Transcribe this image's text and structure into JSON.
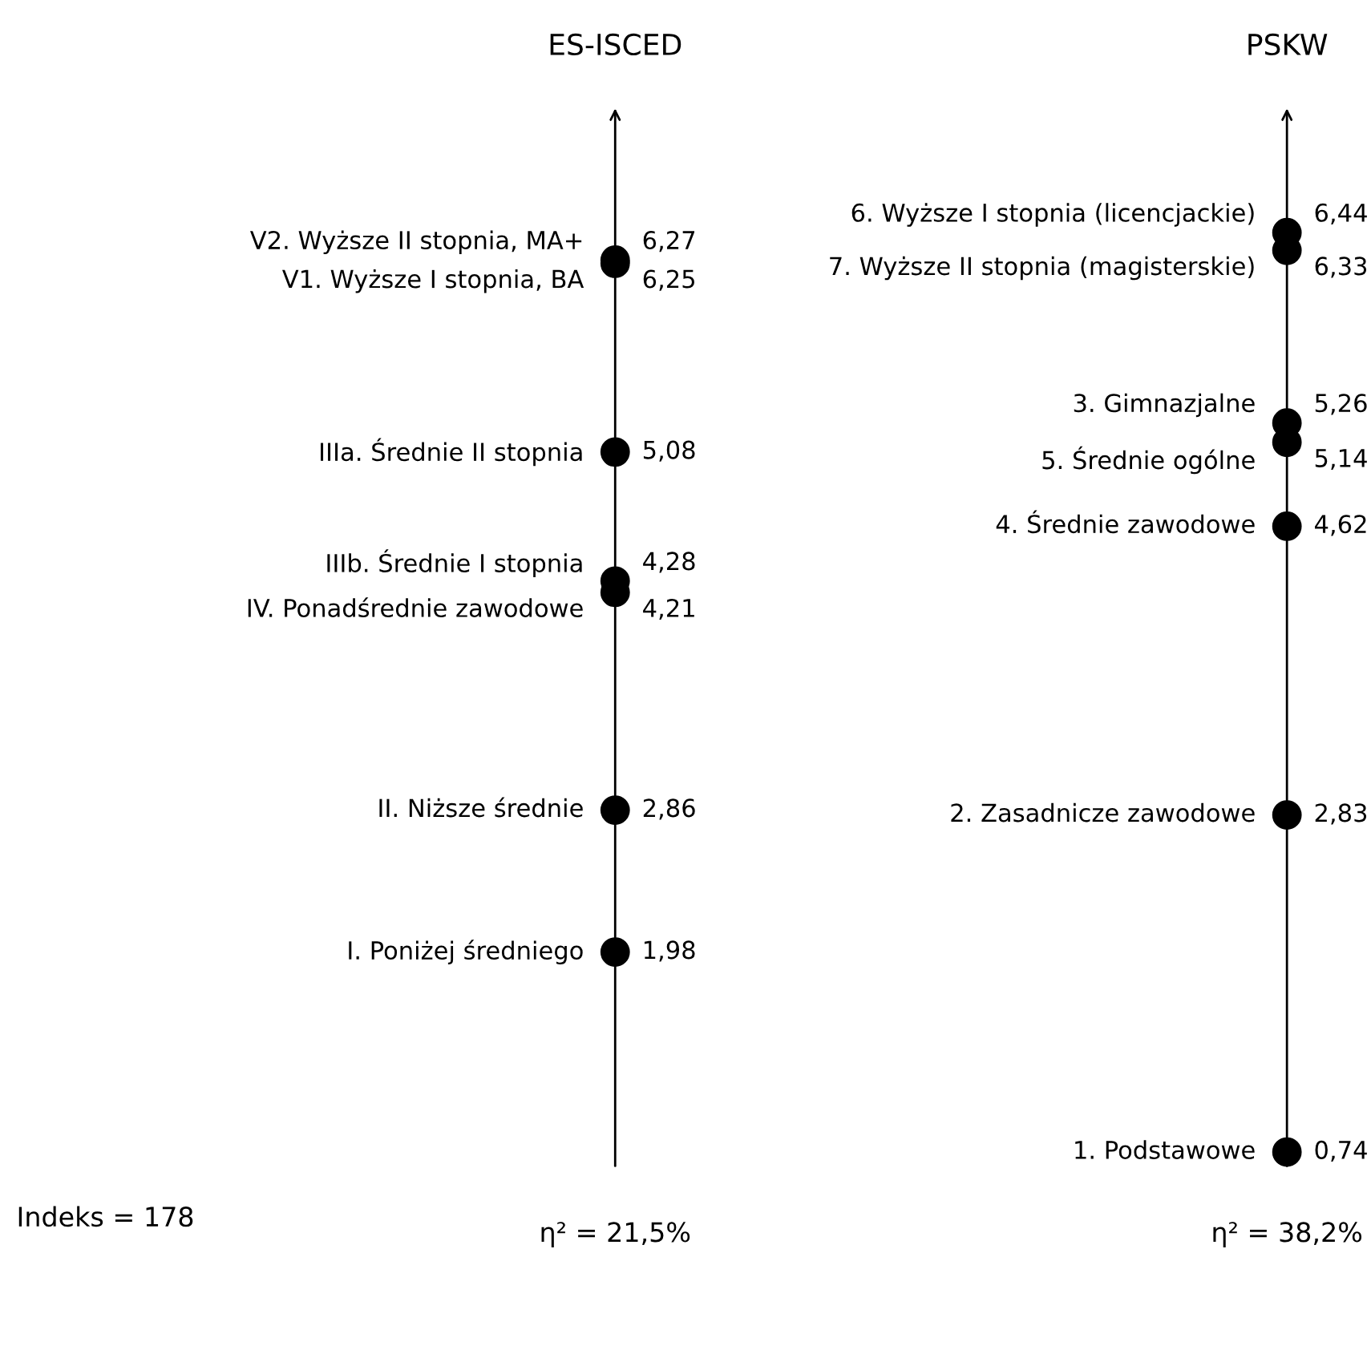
{
  "chart_data": [
    {
      "type": "other",
      "title": "ES-ISCED",
      "xlabel": "η² = 21,5%",
      "color": "#000000",
      "categories": [
        "V2. Wyższe II stopnia, MA+",
        "V1. Wyższe I stopnia, BA",
        "IIIa. Średnie II stopnia",
        "IIIb. Średnie I stopnia",
        "IV. Ponadśrednie zawodowe",
        "II. Niższe średnie",
        "I. Poniżej średniego"
      ],
      "values": [
        6.27,
        6.25,
        5.08,
        4.28,
        4.21,
        2.86,
        1.98
      ],
      "value_labels": [
        "6,27",
        "6,25",
        "5,08",
        "4,28",
        "4,21",
        "2,86",
        "1,98"
      ],
      "annotations": [
        "Indeks = 178"
      ]
    },
    {
      "type": "other",
      "title": "PSKW",
      "xlabel": "η² = 38,2%",
      "color": "#000000",
      "categories": [
        "6. Wyższe I stopnia (licencjackie)",
        "7. Wyższe II stopnia (magisterskie)",
        "3. Gimnazjalne",
        "5. Średnie ogólne",
        "4. Średnie zawodowe",
        "2. Zasadnicze zawodowe",
        "1. Podstawowe"
      ],
      "values": [
        6.44,
        6.33,
        5.26,
        5.14,
        4.62,
        2.83,
        0.74
      ],
      "value_labels": [
        "6,44",
        "6,33",
        "5,26",
        "5,14",
        "4,62",
        "2,83",
        "0,74"
      ]
    }
  ]
}
